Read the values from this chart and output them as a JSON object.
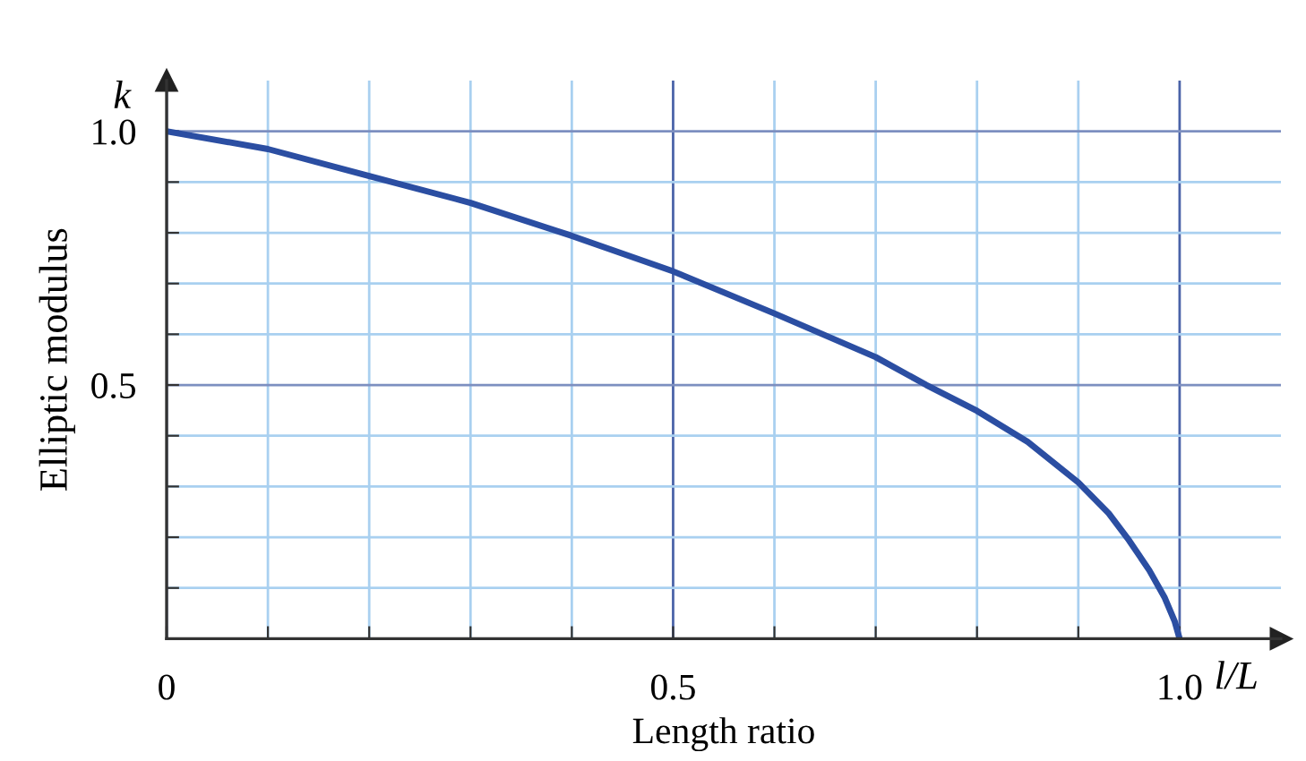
{
  "chart_data": {
    "type": "line",
    "xlabel": "Length ratio",
    "ylabel": "Elliptic modulus",
    "annotations": [
      "k",
      "l/L"
    ],
    "xlim": [
      0,
      1.1
    ],
    "ylim": [
      0,
      1.1
    ],
    "xticks": [
      0,
      {
        "value": 0.1,
        "label": null
      },
      {
        "value": 0.2,
        "label": null
      },
      {
        "value": 0.3,
        "label": null
      },
      {
        "value": 0.4,
        "label": null
      },
      0.5,
      {
        "value": 0.6,
        "label": null
      },
      {
        "value": 0.7,
        "label": null
      },
      {
        "value": 0.8,
        "label": null
      },
      {
        "value": 0.9,
        "label": null
      },
      {
        "value": 1.0,
        "label": "1.0"
      }
    ],
    "yticks": [
      {
        "value": 0.1,
        "label": null
      },
      {
        "value": 0.2,
        "label": null
      },
      {
        "value": 0.3,
        "label": null
      },
      {
        "value": 0.4,
        "label": null
      },
      0.5,
      {
        "value": 0.6,
        "label": null
      },
      {
        "value": 0.7,
        "label": null
      },
      {
        "value": 0.8,
        "label": null
      },
      {
        "value": 0.9,
        "label": null
      },
      {
        "value": 1.0,
        "label": "1.0"
      }
    ],
    "grid": true,
    "marker": "none",
    "line_style": "solid",
    "series": [
      {
        "color": "#2b4ea2",
        "x": [
          0,
          0.1,
          0.2,
          0.3,
          0.4,
          0.5,
          0.6,
          0.7,
          0.75,
          0.8,
          0.85,
          0.9,
          0.93,
          0.95,
          0.97,
          0.985,
          0.995,
          1.0
        ],
        "values": [
          1.0,
          0.965,
          0.912,
          0.859,
          0.794,
          0.724,
          0.641,
          0.555,
          0.5,
          0.449,
          0.388,
          0.308,
          0.247,
          0.194,
          0.135,
          0.082,
          0.035,
          0
        ]
      }
    ]
  }
}
